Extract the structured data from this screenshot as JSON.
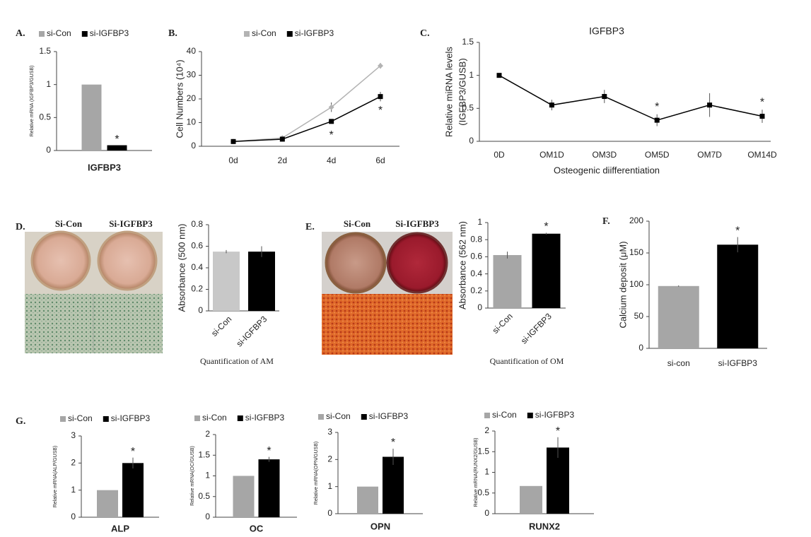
{
  "chart_data": [
    {
      "panel": "A.",
      "type": "bar",
      "ylabel": "Relative mRNA (IGFBP3/GUSB)",
      "categories": [
        "IGFBP3"
      ],
      "series": [
        {
          "name": "si-Con",
          "color": "#a6a6a6",
          "values": [
            1
          ]
        },
        {
          "name": "si-IGFBP3",
          "color": "#000000",
          "values": [
            0.08
          ],
          "stars": [
            "*"
          ]
        }
      ],
      "ylim": [
        0,
        1.5
      ],
      "yticks": [
        0,
        0.5,
        1,
        1.5
      ]
    },
    {
      "panel": "B.",
      "type": "line",
      "ylabel": "Cell Numbers (10⁴)",
      "categories": [
        "0d",
        "2d",
        "4d",
        "6d"
      ],
      "series": [
        {
          "name": "si-Con",
          "color": "#b3b3b3",
          "marker": "diamond",
          "values": [
            2,
            3.5,
            16.5,
            34
          ],
          "errors": [
            0.2,
            0.3,
            2,
            1.2
          ]
        },
        {
          "name": "si-IGFBP3",
          "color": "#000000",
          "marker": "square",
          "values": [
            2,
            3,
            10.5,
            21
          ],
          "errors": [
            0.2,
            0.3,
            0.6,
            2
          ],
          "stars": [
            null,
            null,
            "*",
            "*"
          ]
        }
      ],
      "star_position": "below",
      "ylim": [
        0,
        40
      ],
      "yticks": [
        0,
        10,
        20,
        30,
        40
      ]
    },
    {
      "panel": "C.",
      "type": "line",
      "title": "IGFBP3",
      "ylabel": [
        "Relative miRNA levels",
        "(IGFBP3/GUSB)"
      ],
      "xlabel": "Osteogenic diifferentiation",
      "categories": [
        "0D",
        "OM1D",
        "OM3D",
        "OM5D",
        "OM7D",
        "OM14D"
      ],
      "series": [
        {
          "color": "#000000",
          "marker": "square",
          "values": [
            1,
            0.55,
            0.68,
            0.32,
            0.55,
            0.38
          ],
          "errors": [
            0.02,
            0.08,
            0.1,
            0.09,
            0.18,
            0.1
          ],
          "stars": [
            null,
            null,
            null,
            "*",
            null,
            "*"
          ]
        }
      ],
      "star_position": "above",
      "ylim": [
        0,
        1.5
      ],
      "yticks": [
        0,
        0.5,
        1,
        1.5
      ]
    },
    {
      "panel": "D.",
      "type": "bar",
      "image_labels": [
        "Si-Con",
        "Si-IGFBP3"
      ],
      "ylabel": "Absorbance (500 nm)",
      "xlabel": "Quantification of AM",
      "categories": [
        "si-Con",
        "si-IGFBP3"
      ],
      "values": [
        0.55,
        0.55
      ],
      "errors": [
        0.015,
        0.05
      ],
      "colors": [
        "#c8c8c8",
        "#000000"
      ],
      "ylim": [
        0,
        0.8
      ],
      "yticks": [
        0,
        0.2,
        0.4,
        0.6,
        0.8
      ]
    },
    {
      "panel": "E.",
      "type": "bar",
      "image_labels": [
        "Si-Con",
        "Si-IGFBP3"
      ],
      "ylabel": "Absorbance (562 nm)",
      "xlabel": "Quantification of OM",
      "categories": [
        "si-Con",
        "si-IGFBP3"
      ],
      "values": [
        0.62,
        0.87
      ],
      "errors": [
        0.04,
        0.01
      ],
      "stars": [
        null,
        "*"
      ],
      "colors": [
        "#a6a6a6",
        "#000000"
      ],
      "ylim": [
        0,
        1
      ],
      "yticks": [
        0,
        0.2,
        0.4,
        0.6,
        0.8,
        1
      ]
    },
    {
      "panel": "F.",
      "type": "bar",
      "ylabel": "Calcium deposit (μM)",
      "categories": [
        "si-con",
        "si-IGFBP3"
      ],
      "values": [
        98,
        163
      ],
      "errors": [
        1,
        12
      ],
      "stars": [
        null,
        "*"
      ],
      "colors": [
        "#a6a6a6",
        "#000000"
      ],
      "ylim": [
        0,
        200
      ],
      "yticks": [
        0,
        50,
        100,
        150,
        200
      ]
    },
    {
      "panel": "G.",
      "type": "bar",
      "ylabel": "Relative mRNA(ALP/GUSB)",
      "categories": [
        "ALP"
      ],
      "series": [
        {
          "name": "si-Con",
          "color": "#a6a6a6",
          "values": [
            1
          ]
        },
        {
          "name": "si-IGFBP3",
          "color": "#000000",
          "values": [
            2
          ],
          "errors": [
            0.2
          ],
          "stars": [
            "*"
          ]
        }
      ],
      "ylim": [
        0,
        3
      ],
      "yticks": [
        0,
        1,
        2,
        3
      ]
    },
    {
      "type": "bar",
      "ylabel": "Relative mRNA(OC/GUSB)",
      "categories": [
        "OC"
      ],
      "series": [
        {
          "name": "si-Con",
          "color": "#a6a6a6",
          "values": [
            1
          ]
        },
        {
          "name": "si-IGFBP3",
          "color": "#000000",
          "values": [
            1.4
          ],
          "errors": [
            0.06
          ],
          "stars": [
            "*"
          ]
        }
      ],
      "ylim": [
        0,
        2
      ],
      "yticks": [
        0,
        0.5,
        1,
        1.5,
        2
      ]
    },
    {
      "type": "bar",
      "ylabel": "Relative mRNA(OPN/GUSB)",
      "categories": [
        "OPN"
      ],
      "series": [
        {
          "name": "si-Con",
          "color": "#a6a6a6",
          "values": [
            1
          ]
        },
        {
          "name": "si-IGFBP3",
          "color": "#000000",
          "values": [
            2.1
          ],
          "errors": [
            0.3
          ],
          "stars": [
            "*"
          ]
        }
      ],
      "ylim": [
        0,
        3
      ],
      "yticks": [
        0,
        1,
        2,
        3
      ]
    },
    {
      "type": "bar",
      "ylabel": "Relative mRNA(RUNX2/GUSB)",
      "categories": [
        "RUNX2"
      ],
      "series": [
        {
          "name": "si-Con",
          "color": "#a6a6a6",
          "values": [
            0.67
          ]
        },
        {
          "name": "si-IGFBP3",
          "color": "#000000",
          "values": [
            1.6
          ],
          "errors": [
            0.25
          ],
          "stars": [
            "*"
          ]
        }
      ],
      "ylim": [
        0,
        2
      ],
      "yticks": [
        0,
        0.5,
        1,
        1.5,
        2
      ]
    }
  ]
}
